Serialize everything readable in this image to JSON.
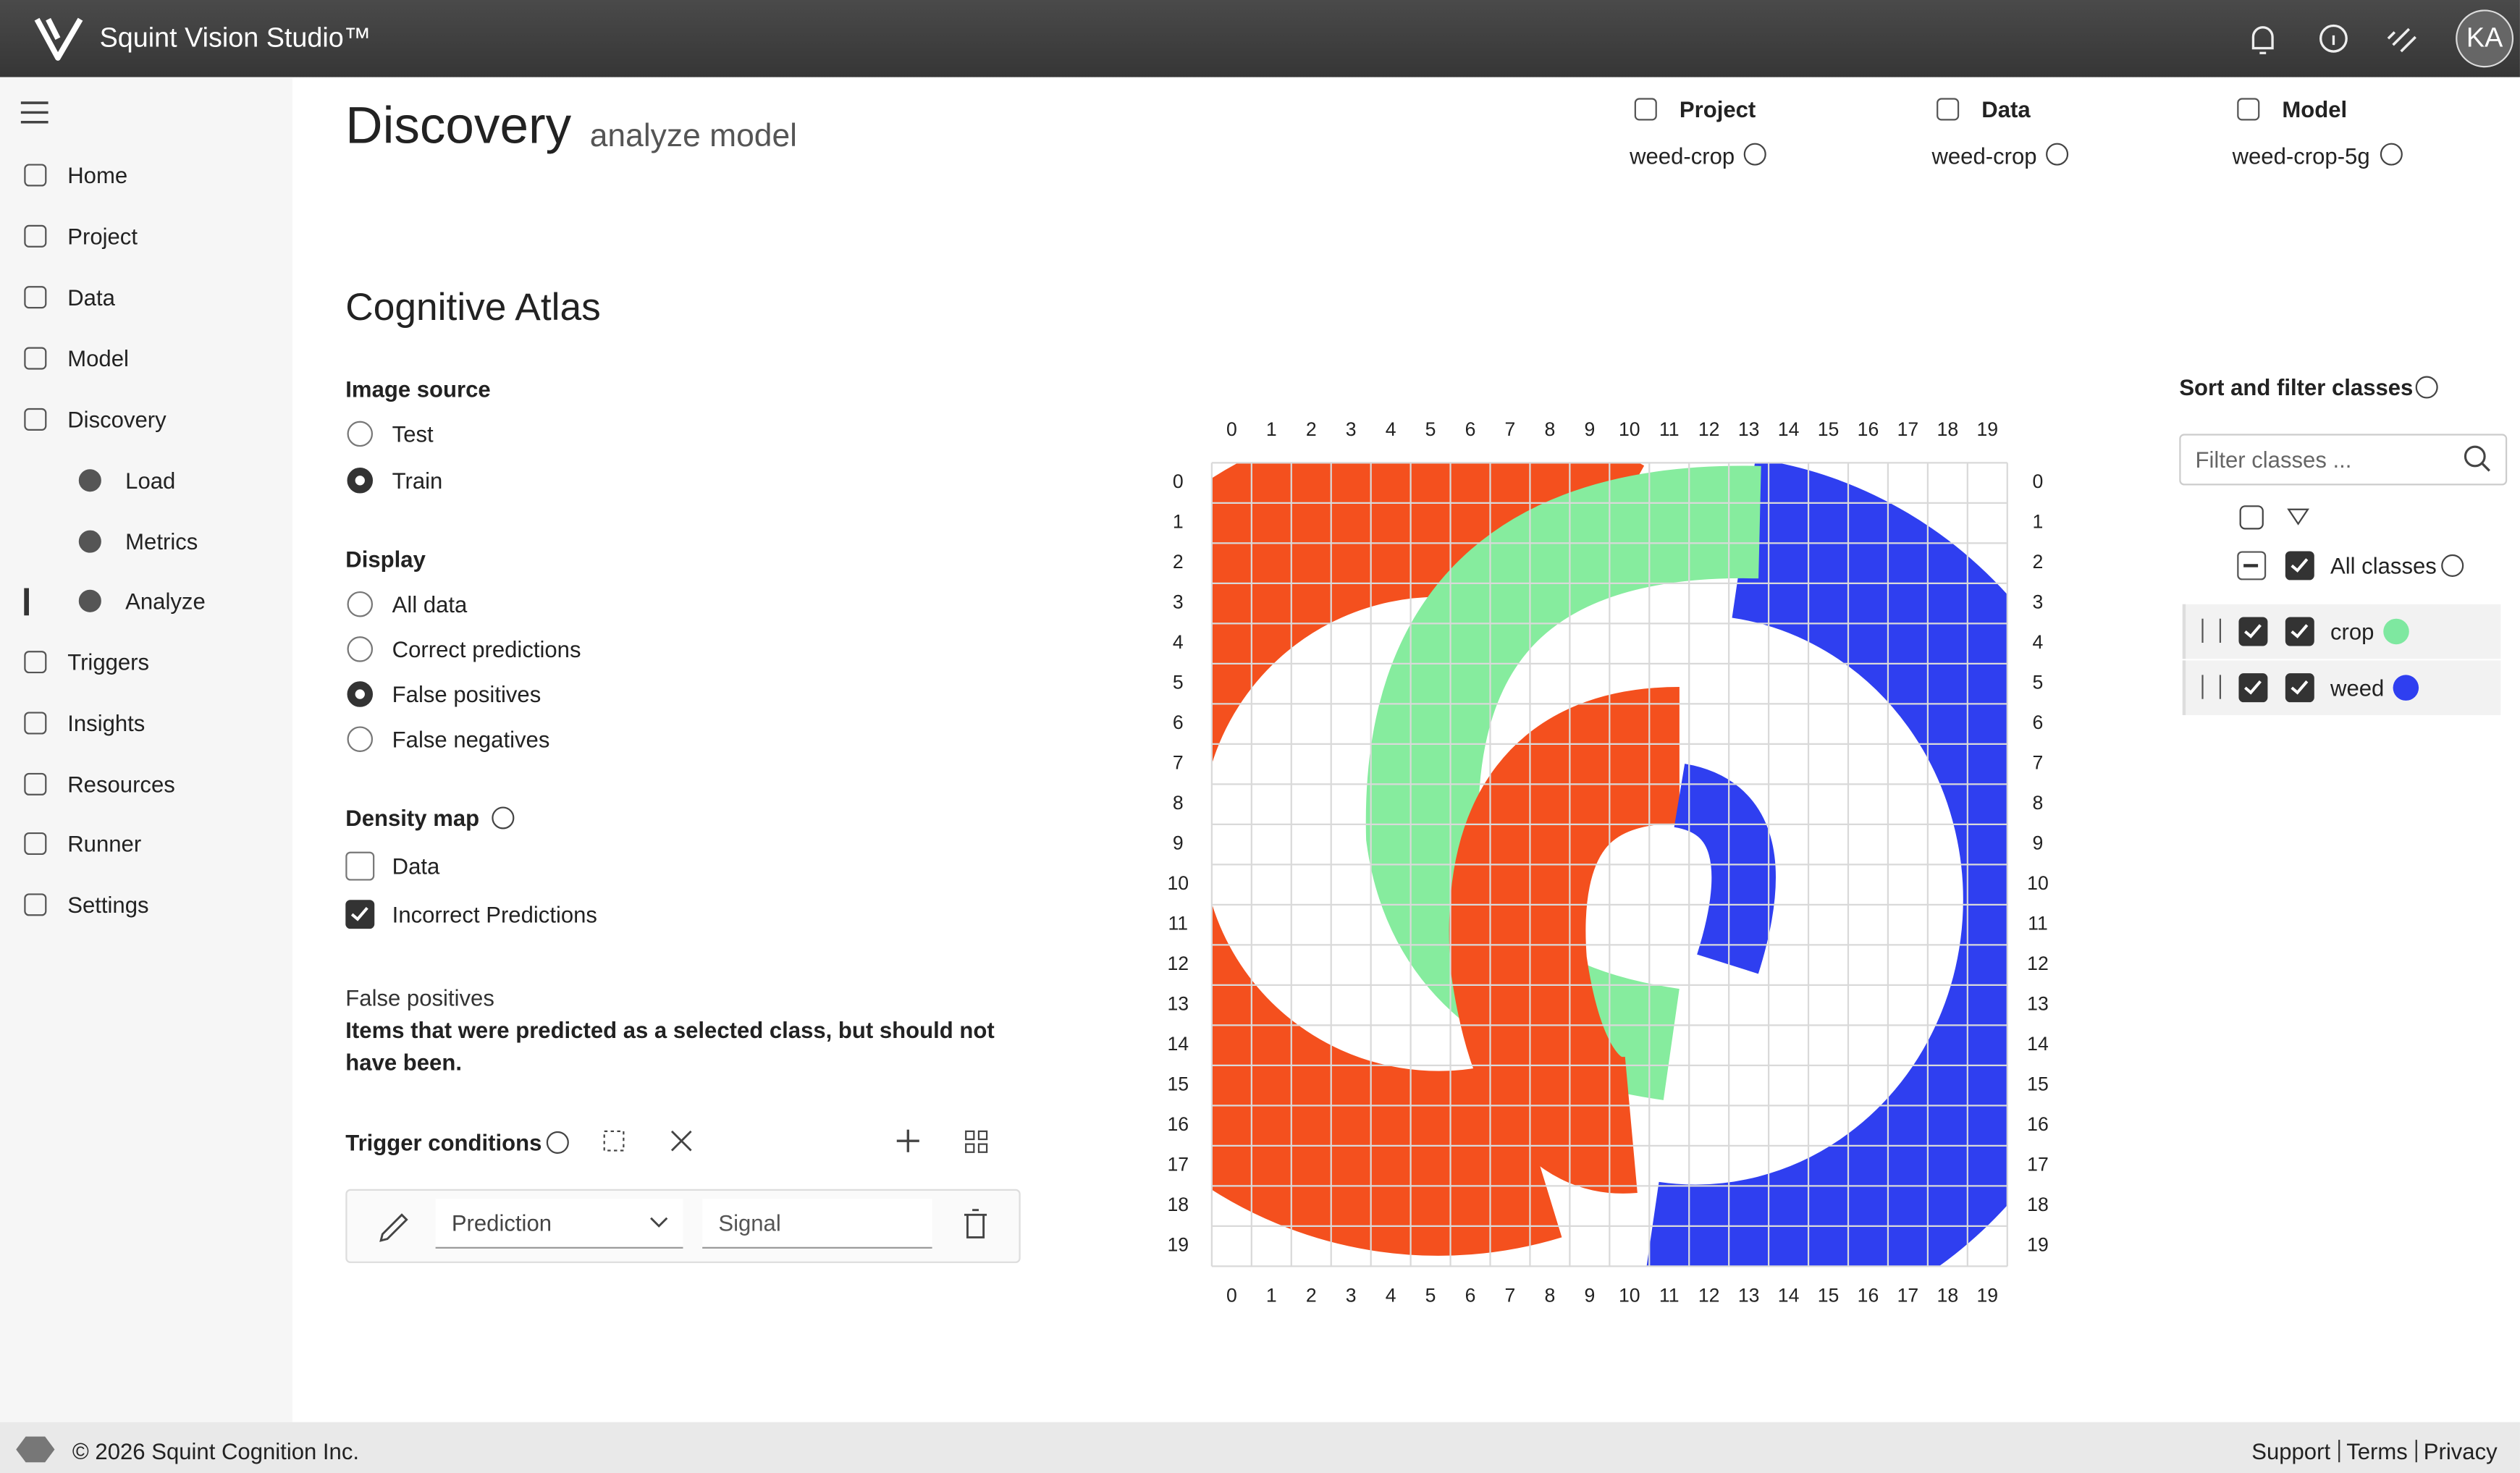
{
  "header": {
    "app_title": "Squint Vision Studio™",
    "avatar": "KA"
  },
  "nav": {
    "items": [
      "Home",
      "Project",
      "Data",
      "Model",
      "Discovery",
      "Load",
      "Metrics",
      "Analyze",
      "Triggers",
      "Insights",
      "Resources",
      "Runner",
      "Settings"
    ],
    "active": "Analyze"
  },
  "page": {
    "title": "Discovery",
    "subtitle": "analyze model"
  },
  "context": [
    {
      "label": "Project",
      "value": "weed-crop"
    },
    {
      "label": "Data",
      "value": "weed-crop"
    },
    {
      "label": "Model",
      "value": "weed-crop-5g"
    }
  ],
  "atlas": {
    "title": "Cognitive Atlas",
    "image_source": {
      "label": "Image source",
      "options": [
        "Test",
        "Train"
      ],
      "selected": "Train"
    },
    "display": {
      "label": "Display",
      "options": [
        "All data",
        "Correct predictions",
        "False positives",
        "False negatives"
      ],
      "selected": "False positives"
    },
    "density_map": {
      "label": "Density map",
      "options": [
        "Data",
        "Incorrect Predictions"
      ],
      "checked": [
        false,
        true
      ]
    },
    "description": {
      "title": "False positives",
      "text": "Items that were predicted as a selected class, but should not have been."
    },
    "trigger": {
      "label": "Trigger conditions",
      "field": "Prediction",
      "input_placeholder": "Signal"
    },
    "grid_labels": [
      0,
      1,
      2,
      3,
      4,
      5,
      6,
      7,
      8,
      9,
      10,
      11,
      12,
      13,
      14,
      15,
      16,
      17,
      18,
      19
    ]
  },
  "classes": {
    "title": "Sort and filter classes",
    "filter_placeholder": "Filter classes ...",
    "all_label": "All classes",
    "items": [
      {
        "name": "crop",
        "color": "#7ee8a0",
        "checked": true
      },
      {
        "name": "weed",
        "color": "#2f3ff0",
        "checked": true
      }
    ]
  },
  "footer": {
    "copyright": "© 2026 Squint Cognition Inc.",
    "links": [
      "Support",
      "Terms",
      "Privacy"
    ]
  }
}
